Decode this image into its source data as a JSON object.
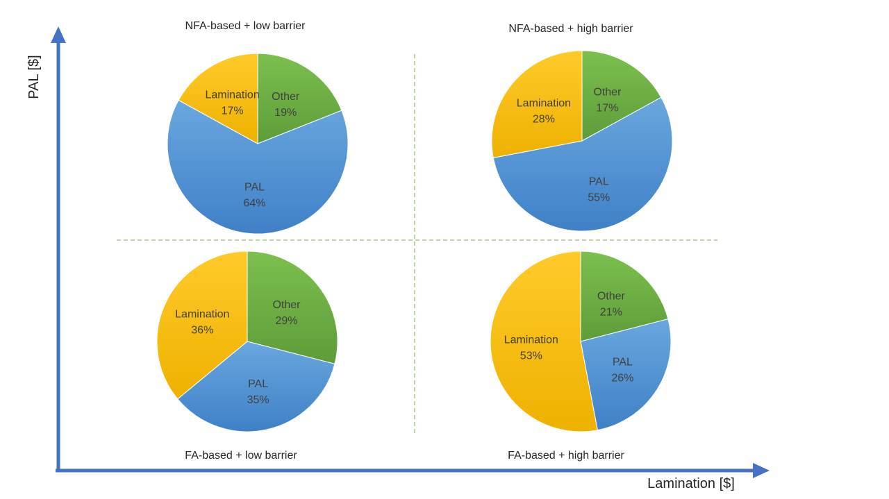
{
  "colors": {
    "Other": "#70ad47",
    "PAL": "#5b9bd5",
    "Lamination": "#ffc000",
    "axis": "#4472c4",
    "divider": "#70ad47"
  },
  "axes": {
    "x_label": "Lamination [$]",
    "y_label": "PAL [$]"
  },
  "chart_data": [
    {
      "type": "pie",
      "title": "NFA-based + low barrier",
      "quadrant": "top-left",
      "slices": [
        {
          "label": "Other",
          "value": 19,
          "text": "19%"
        },
        {
          "label": "PAL",
          "value": 64,
          "text": "64%"
        },
        {
          "label": "Lamination",
          "value": 17,
          "text": "17%"
        }
      ]
    },
    {
      "type": "pie",
      "title": "NFA-based + high barrier",
      "quadrant": "top-right",
      "slices": [
        {
          "label": "Other",
          "value": 17,
          "text": "17%"
        },
        {
          "label": "PAL",
          "value": 55,
          "text": "55%"
        },
        {
          "label": "Lamination",
          "value": 28,
          "text": "28%"
        }
      ]
    },
    {
      "type": "pie",
      "title": "FA-based + low barrier",
      "quadrant": "bottom-left",
      "slices": [
        {
          "label": "Other",
          "value": 29,
          "text": "29%"
        },
        {
          "label": "PAL",
          "value": 35,
          "text": "35%"
        },
        {
          "label": "Lamination",
          "value": 36,
          "text": "36%"
        }
      ]
    },
    {
      "type": "pie",
      "title": "FA-based + high barrier",
      "quadrant": "bottom-right",
      "slices": [
        {
          "label": "Other",
          "value": 21,
          "text": "21%"
        },
        {
          "label": "PAL",
          "value": 26,
          "text": "26%"
        },
        {
          "label": "Lamination",
          "value": 53,
          "text": "53%"
        }
      ]
    }
  ]
}
